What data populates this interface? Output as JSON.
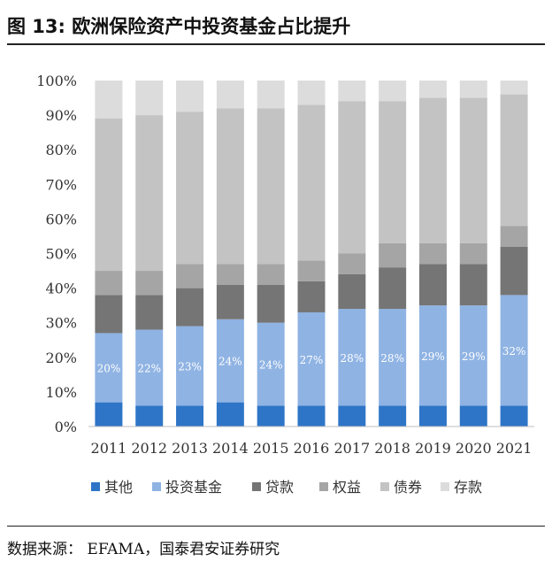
{
  "header": {
    "title": "图 13: 欧洲保险资产中投资基金占比提升"
  },
  "footer": {
    "source": "数据来源： EFAMA，国泰君安证券研究"
  },
  "chart_data": {
    "type": "bar",
    "stacked": true,
    "title": "图 13: 欧洲保险资产中投资基金占比提升",
    "categories": [
      "2011",
      "2012",
      "2013",
      "2014",
      "2015",
      "2016",
      "2017",
      "2018",
      "2019",
      "2020",
      "2021"
    ],
    "ylim": [
      0,
      100
    ],
    "y_ticks": [
      "0%",
      "10%",
      "20%",
      "30%",
      "40%",
      "50%",
      "60%",
      "70%",
      "80%",
      "90%",
      "100%"
    ],
    "legend_position": "bottom",
    "series": [
      {
        "name": "其他",
        "color": "#2e75c7",
        "values": [
          7,
          6,
          6,
          7,
          6,
          6,
          6,
          6,
          6,
          6,
          6
        ]
      },
      {
        "name": "投资基金",
        "color": "#8fb3e3",
        "values": [
          20,
          22,
          23,
          24,
          24,
          27,
          28,
          28,
          29,
          29,
          32
        ],
        "data_labels": [
          "20%",
          "22%",
          "23%",
          "24%",
          "24%",
          "27%",
          "28%",
          "28%",
          "29%",
          "29%",
          "32%"
        ]
      },
      {
        "name": "贷款",
        "color": "#757575",
        "values": [
          11,
          10,
          11,
          10,
          11,
          9,
          10,
          12,
          12,
          12,
          14
        ]
      },
      {
        "name": "权益",
        "color": "#a5a5a5",
        "values": [
          7,
          7,
          7,
          6,
          6,
          6,
          6,
          7,
          6,
          6,
          6
        ]
      },
      {
        "name": "债券",
        "color": "#c3c3c3",
        "values": [
          44,
          45,
          44,
          45,
          45,
          45,
          44,
          41,
          42,
          42,
          38
        ]
      },
      {
        "name": "存款",
        "color": "#dcdcdc",
        "values": [
          11,
          10,
          9,
          8,
          8,
          7,
          6,
          6,
          5,
          5,
          4
        ]
      }
    ]
  }
}
